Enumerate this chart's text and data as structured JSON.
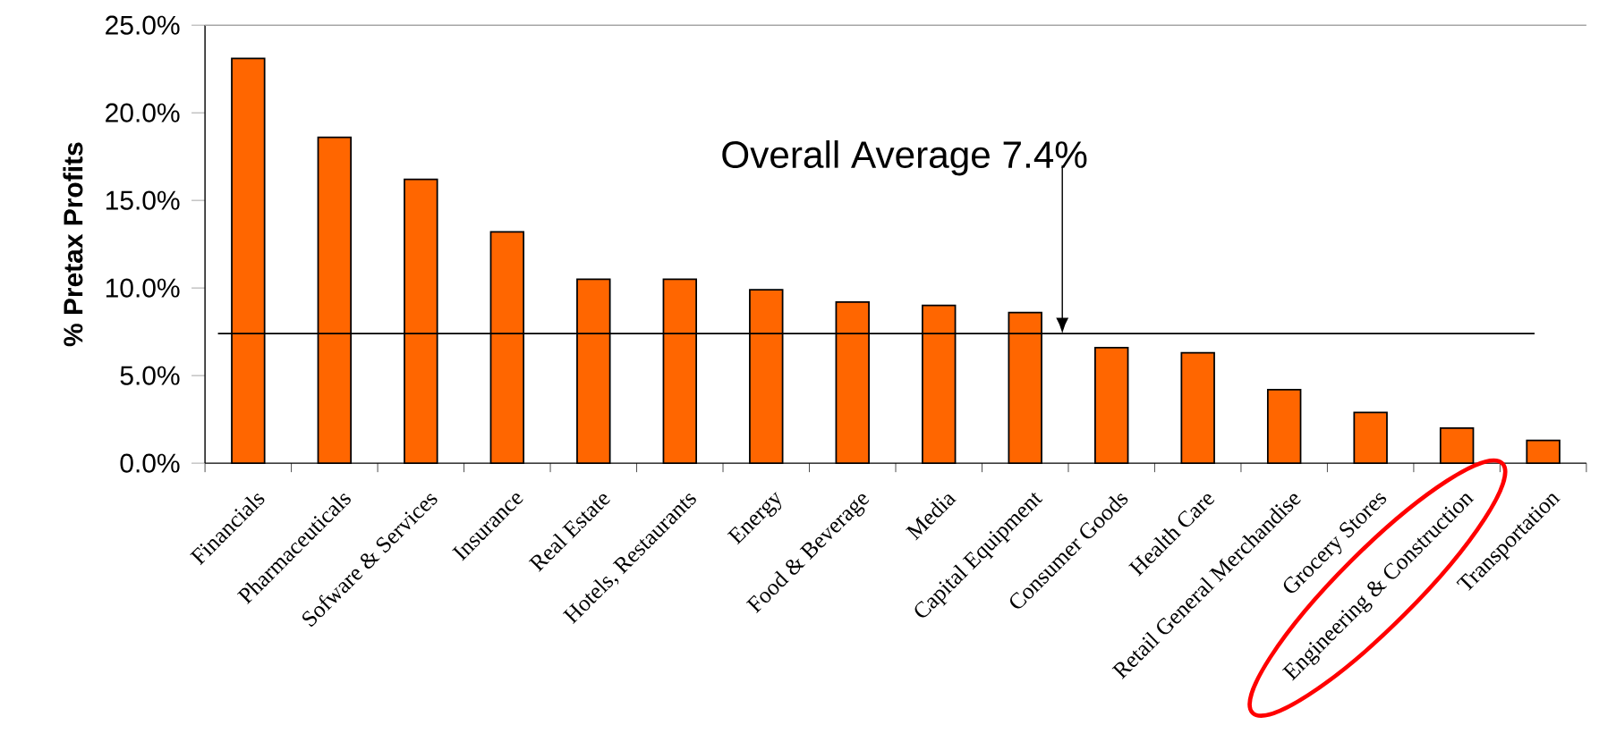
{
  "chart_data": {
    "type": "bar",
    "ylabel": "% Pretax Profits",
    "categories": [
      "Financials",
      "Pharmaceuticals",
      "Sofware & Services",
      "Insurance",
      "Real Estate",
      "Hotels, Restaurants",
      "Energy",
      "Food & Beverage",
      "Media",
      "Capital Equipment",
      "Consumer Goods",
      "Health Care",
      "Retail General Merchandise",
      "Grocery Stores",
      "Engineering & Construction",
      "Transportation"
    ],
    "values": [
      23.1,
      18.6,
      16.2,
      13.2,
      10.5,
      10.5,
      9.9,
      9.2,
      9.0,
      8.6,
      6.6,
      6.3,
      4.2,
      2.9,
      2.0,
      1.3
    ],
    "color": "#ff6600",
    "ylim": [
      0,
      25
    ],
    "yticks": [
      {
        "value": 0,
        "label": "0.0%"
      },
      {
        "value": 5,
        "label": "5.0%"
      },
      {
        "value": 10,
        "label": "10.0%"
      },
      {
        "value": 15,
        "label": "15.0%"
      },
      {
        "value": 20,
        "label": "20.0%"
      },
      {
        "value": 25,
        "label": "25.0%"
      }
    ],
    "ref_lines": [
      {
        "axis": "y",
        "value": 7.4,
        "color": "#000000"
      }
    ],
    "annotations": [
      "Overall Average 7.4%"
    ],
    "grid": false
  }
}
